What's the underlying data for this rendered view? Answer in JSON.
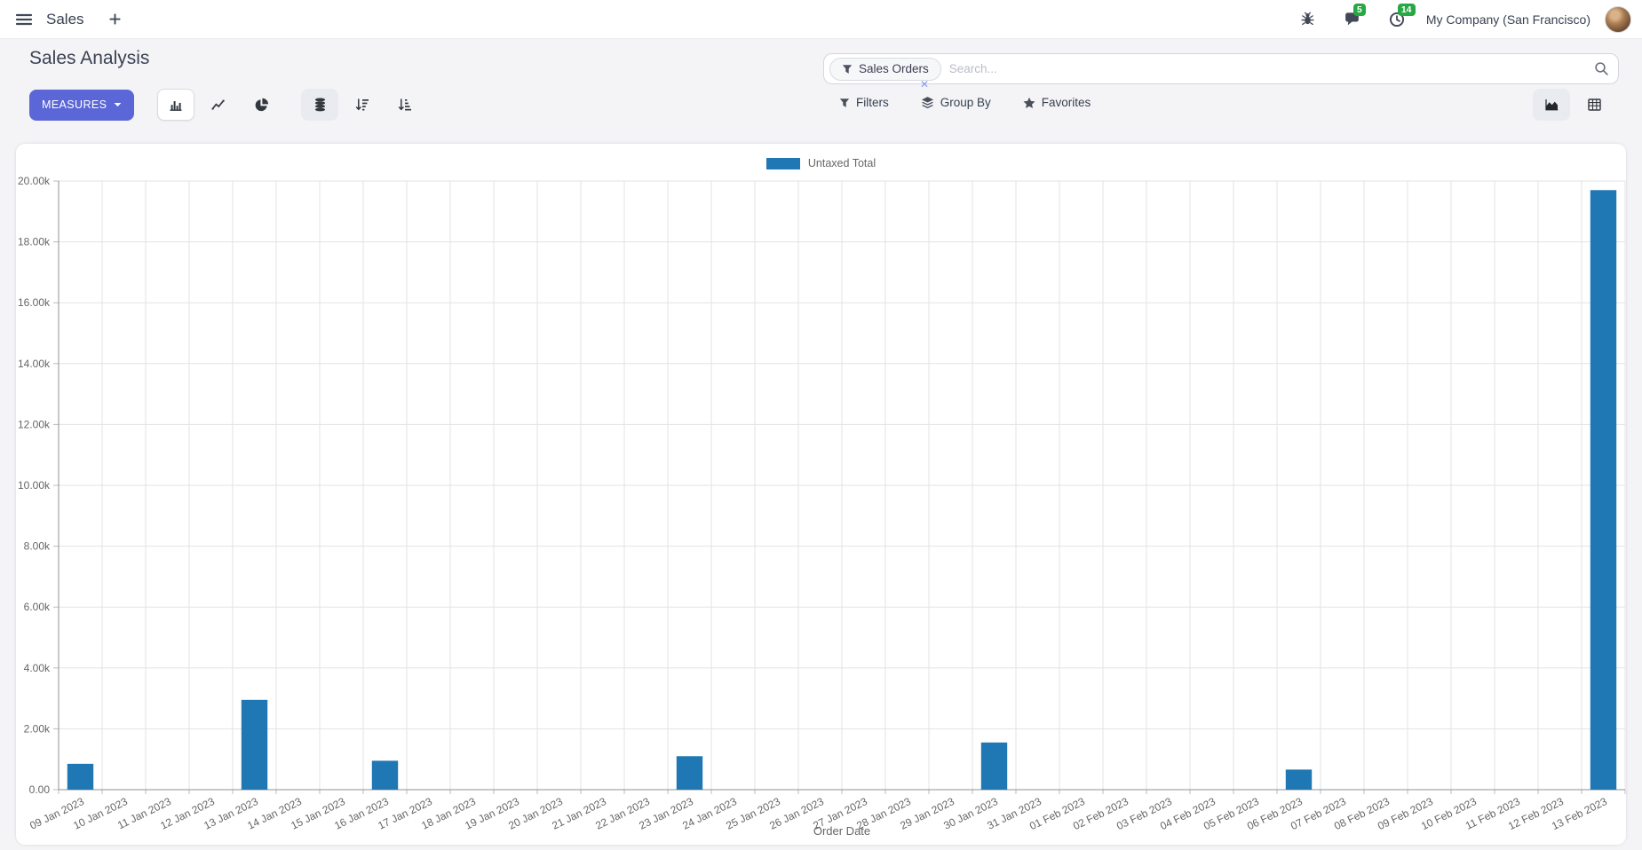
{
  "navbar": {
    "app_label": "Sales",
    "messages_badge": "5",
    "activities_badge": "14",
    "company": "My Company (San Francisco)"
  },
  "control_panel": {
    "title": "Sales Analysis",
    "measures_label": "MEASURES",
    "search": {
      "facet_label": "Sales Orders",
      "facet_remove": "✕",
      "placeholder": "Search..."
    },
    "filters_label": "Filters",
    "group_by_label": "Group By",
    "favorites_label": "Favorites"
  },
  "chart_data": {
    "type": "bar",
    "title": "",
    "xlabel": "Order Date",
    "ylabel": "",
    "ylim": [
      0,
      20000
    ],
    "grid": true,
    "legend_position": "top",
    "ytick_labels": [
      "0.00",
      "2.00k",
      "4.00k",
      "6.00k",
      "8.00k",
      "10.00k",
      "12.00k",
      "14.00k",
      "16.00k",
      "18.00k",
      "20.00k"
    ],
    "categories": [
      "09 Jan 2023",
      "10 Jan 2023",
      "11 Jan 2023",
      "12 Jan 2023",
      "13 Jan 2023",
      "14 Jan 2023",
      "15 Jan 2023",
      "16 Jan 2023",
      "17 Jan 2023",
      "18 Jan 2023",
      "19 Jan 2023",
      "20 Jan 2023",
      "21 Jan 2023",
      "22 Jan 2023",
      "23 Jan 2023",
      "24 Jan 2023",
      "25 Jan 2023",
      "26 Jan 2023",
      "27 Jan 2023",
      "28 Jan 2023",
      "29 Jan 2023",
      "30 Jan 2023",
      "31 Jan 2023",
      "01 Feb 2023",
      "02 Feb 2023",
      "03 Feb 2023",
      "04 Feb 2023",
      "05 Feb 2023",
      "06 Feb 2023",
      "07 Feb 2023",
      "08 Feb 2023",
      "09 Feb 2023",
      "10 Feb 2023",
      "11 Feb 2023",
      "12 Feb 2023",
      "13 Feb 2023"
    ],
    "series": [
      {
        "name": "Untaxed Total",
        "color": "#1f77b4",
        "values": [
          850,
          0,
          0,
          0,
          2950,
          0,
          0,
          950,
          0,
          0,
          0,
          0,
          0,
          0,
          1100,
          0,
          0,
          0,
          0,
          0,
          0,
          1550,
          0,
          0,
          0,
          0,
          0,
          0,
          660,
          0,
          0,
          0,
          0,
          0,
          0,
          19700
        ]
      }
    ]
  },
  "colors": {
    "bar": "#1f77b4",
    "primary_button": "#5b67d6",
    "badge_green": "#28a745",
    "axis_text": "#666666",
    "grid_line": "#e3e3e7",
    "axis_line": "#8d9095"
  },
  "icons": {
    "menu-icon": "hamburger",
    "plus-icon": "+",
    "bug-icon": "bug",
    "messages-icon": "speech-bubble",
    "activities-icon": "clock",
    "facet-filter-icon": "funnel",
    "search-icon": "magnifier",
    "bar-chart-icon": "bars",
    "line-chart-icon": "zigzag-line",
    "pie-chart-icon": "pie",
    "stacked-icon": "database-discs",
    "sort-desc-icon": "arrow-down-bars-desc",
    "sort-asc-icon": "arrow-down-bars-asc",
    "filters-icon": "funnel",
    "group-by-icon": "layers",
    "favorites-icon": "star",
    "graph-view-icon": "area-chart",
    "pivot-view-icon": "table-grid"
  }
}
